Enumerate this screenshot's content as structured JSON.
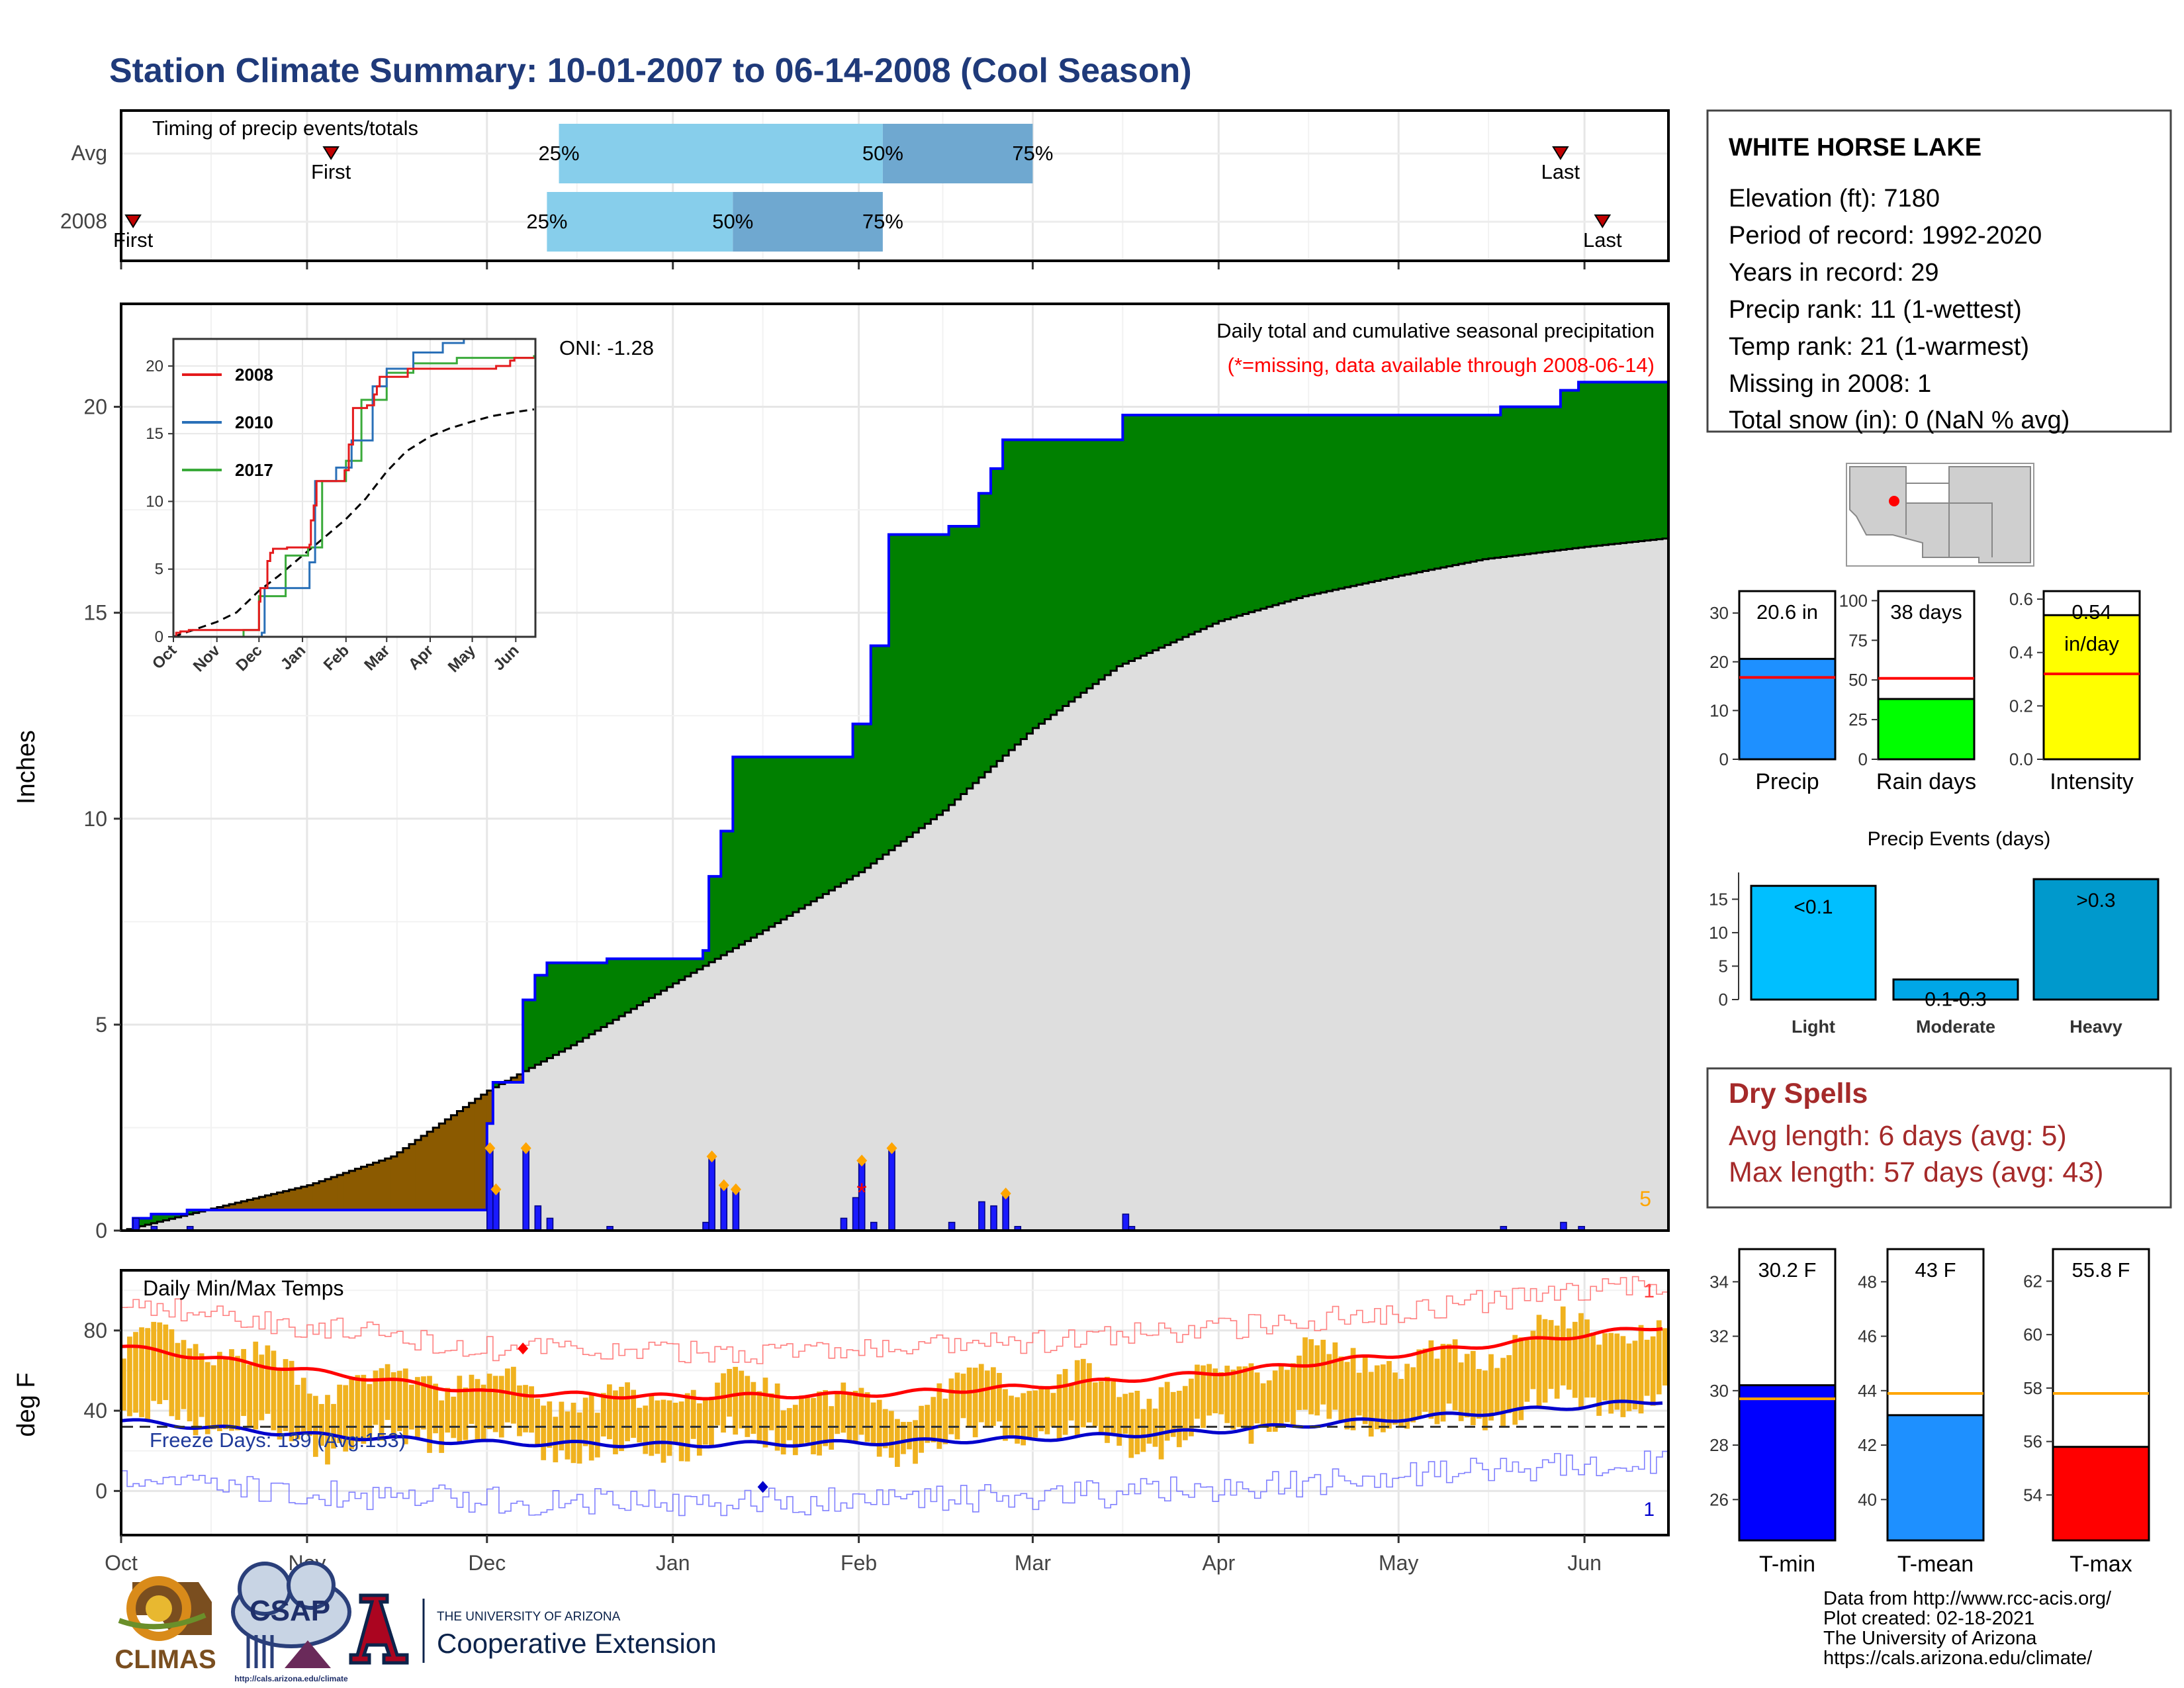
{
  "title": "Station Climate Summary: 10-01-2007 to 06-14-2008 (Cool Season)",
  "colors": {
    "title": "#1f3a7a",
    "cumulative_precip": "#008000",
    "deficit_precip": "#8b5a00",
    "normal_area": "#dedede",
    "precip_line": "#0000ff",
    "daily_bar": "#1a1aff",
    "temp_bar": "#f0b21f",
    "tmax_avg": "#ff0000",
    "tmin_avg": "#0000cc",
    "dry_spells": "#a52a2a",
    "light": "#00bfff",
    "moderate": "#00a6e6",
    "heavy": "#0099cc",
    "rain_days": "#00ff00",
    "intensity": "#ffff00",
    "precip_gauge": "#1e90ff",
    "tmin_gauge": "#0000ff",
    "tmean_gauge": "#1e90ff",
    "tmax_gauge": "#ff0000"
  },
  "timing": {
    "label": "Timing of precip events/totals",
    "rows": [
      {
        "label": "Avg",
        "first": "First",
        "last": "Last",
        "first_date": "2007-11-05",
        "last_date": "2008-05-28",
        "q25_date": "2007-12-13",
        "q50_date": "2008-02-05",
        "q75_date": "2008-03-01",
        "q25": "25%",
        "q50": "50%",
        "q75": "75%"
      },
      {
        "label": "2008",
        "first": "First",
        "last": "Last",
        "first_date": "2007-10-03",
        "last_date": "2008-06-04",
        "q25_date": "2007-12-11",
        "q50_date": "2008-01-11",
        "q75_date": "2008-02-05",
        "q25": "25%",
        "q50": "50%",
        "q75": "75%"
      }
    ]
  },
  "precip_panel": {
    "ylabel": "Inches",
    "oni": "ONI: -1.28",
    "caption": "Daily total and cumulative seasonal precipitation",
    "missing_note": "(*=missing, data available through 2008-06-14)",
    "count_label": "5",
    "yticks": [
      "0",
      "5",
      "10",
      "15",
      "20"
    ]
  },
  "inset": {
    "legend": [
      "2008",
      "2010",
      "2017"
    ],
    "yticks": [
      "0",
      "5",
      "10",
      "15",
      "20"
    ],
    "xticks": [
      "Oct",
      "Nov",
      "Dec",
      "Jan",
      "Feb",
      "Mar",
      "Apr",
      "May",
      "Jun"
    ]
  },
  "temp_panel": {
    "ylabel": "deg F",
    "label": "Daily Min/Max Temps",
    "freeze": "Freeze Days: 139 (Avg:153)",
    "top_count": "1",
    "bottom_count": "1",
    "yticks": [
      "0",
      "40",
      "80"
    ]
  },
  "months": [
    "Oct",
    "Nov",
    "Dec",
    "Jan",
    "Feb",
    "Mar",
    "Apr",
    "May",
    "Jun"
  ],
  "station": {
    "name": "WHITE HORSE LAKE",
    "lines": [
      "Elevation (ft): 7180",
      "Period of record: 1992-2020",
      "Years in record: 29",
      "Precip rank: 11 (1-wettest)",
      "Temp rank: 21 (1-warmest)",
      "Missing in 2008: 1",
      "Total snow (in): 0 (NaN % avg)"
    ]
  },
  "gauges_precip": [
    {
      "label": "Precip",
      "value_text": "20.6 in",
      "value": 20.6,
      "avg": 16.8,
      "max": 34.5,
      "ticks": [
        "0",
        "10",
        "20",
        "30"
      ],
      "tick_values": [
        0,
        10,
        20,
        30
      ]
    },
    {
      "label": "Rain days",
      "value_text": "38 days",
      "value": 38,
      "avg": 51,
      "max": 106,
      "ticks": [
        "0",
        "25",
        "50",
        "75",
        "100"
      ],
      "tick_values": [
        0,
        25,
        50,
        75,
        100
      ]
    },
    {
      "label": "Intensity",
      "value_text": "0.54",
      "value_text2": "in/day",
      "value": 0.54,
      "avg": 0.32,
      "max": 0.63,
      "ticks": [
        "0.0",
        "0.2",
        "0.4",
        "0.6"
      ],
      "tick_values": [
        0,
        0.2,
        0.4,
        0.6
      ]
    }
  ],
  "events": {
    "title": "Precip Events (days)",
    "categories": [
      "Light",
      "Moderate",
      "Heavy"
    ],
    "bar_labels": [
      "<0.1",
      "0.1-0.3",
      ">0.3"
    ],
    "values": [
      17,
      3,
      18
    ],
    "yticks": [
      "0",
      "5",
      "10",
      "15"
    ],
    "ymax": 19
  },
  "dry_spells": {
    "title": "Dry Spells",
    "lines": [
      "Avg length: 6 days (avg: 5)",
      "Max length: 57 days (avg: 43)"
    ]
  },
  "gauges_temp": [
    {
      "label": "T-min",
      "value_text": "30.2 F",
      "value": 30.2,
      "avg": 29.7,
      "min": 24.5,
      "max": 35.2,
      "ticks": [
        "26",
        "28",
        "30",
        "32",
        "34"
      ],
      "tick_values": [
        26,
        28,
        30,
        32,
        34
      ]
    },
    {
      "label": "T-mean",
      "value_text": "43 F",
      "value": 43.1,
      "avg": 43.9,
      "min": 38.5,
      "max": 49.2,
      "ticks": [
        "40",
        "42",
        "44",
        "46",
        "48"
      ],
      "tick_values": [
        40,
        42,
        44,
        46,
        48
      ]
    },
    {
      "label": "T-max",
      "value_text": "55.8 F",
      "value": 55.8,
      "avg": 57.8,
      "min": 52.3,
      "max": 63.2,
      "ticks": [
        "54",
        "56",
        "58",
        "60",
        "62"
      ],
      "tick_values": [
        54,
        56,
        58,
        60,
        62
      ]
    }
  ],
  "footer": {
    "lines": [
      "Data from http://www.rcc-acis.org/",
      "Plot created: 02-18-2021",
      "The University of Arizona",
      "https://cals.arizona.edu/climate/"
    ],
    "logo1": "CLIMAS",
    "logo2": "CSAP",
    "logo2_url": "http://cals.arizona.edu/climate",
    "ua_small": "THE UNIVERSITY OF ARIZONA",
    "ua_big": "Cooperative Extension"
  },
  "chart_data": [
    {
      "type": "area",
      "title": "Daily total and cumulative seasonal precipitation",
      "ylabel": "Inches",
      "ylim": [
        0,
        22.5
      ],
      "x_range": [
        "2007-10-01",
        "2008-06-14"
      ],
      "cumulative_2008": [
        [
          "2007-10-01",
          0.0
        ],
        [
          "2007-10-03",
          0.3
        ],
        [
          "2007-10-06",
          0.4
        ],
        [
          "2007-10-12",
          0.5
        ],
        [
          "2007-11-30",
          0.5
        ],
        [
          "2007-12-01",
          2.6
        ],
        [
          "2007-12-02",
          3.6
        ],
        [
          "2007-12-06",
          3.6
        ],
        [
          "2007-12-07",
          5.6
        ],
        [
          "2007-12-09",
          6.2
        ],
        [
          "2007-12-11",
          6.5
        ],
        [
          "2007-12-18",
          6.5
        ],
        [
          "2007-12-21",
          6.6
        ],
        [
          "2007-12-31",
          6.6
        ],
        [
          "2008-01-06",
          6.8
        ],
        [
          "2008-01-07",
          8.6
        ],
        [
          "2008-01-09",
          9.7
        ],
        [
          "2008-01-11",
          11.5
        ],
        [
          "2008-01-29",
          11.5
        ],
        [
          "2008-01-31",
          12.3
        ],
        [
          "2008-02-03",
          14.2
        ],
        [
          "2008-02-06",
          16.9
        ],
        [
          "2008-02-14",
          16.9
        ],
        [
          "2008-02-16",
          17.1
        ],
        [
          "2008-02-21",
          17.9
        ],
        [
          "2008-02-23",
          18.5
        ],
        [
          "2008-02-25",
          19.2
        ],
        [
          "2008-03-14",
          19.2
        ],
        [
          "2008-03-16",
          19.8
        ],
        [
          "2008-05-18",
          20.0
        ],
        [
          "2008-05-28",
          20.4
        ],
        [
          "2008-05-31",
          20.6
        ],
        [
          "2008-06-14",
          20.6
        ]
      ],
      "normal_cumulative": [
        [
          "2007-10-01",
          0.0
        ],
        [
          "2007-10-15",
          0.5
        ],
        [
          "2007-11-01",
          1.1
        ],
        [
          "2007-11-15",
          1.8
        ],
        [
          "2007-12-01",
          3.4
        ],
        [
          "2007-12-15",
          4.5
        ],
        [
          "2008-01-01",
          6.0
        ],
        [
          "2008-01-15",
          7.2
        ],
        [
          "2008-02-01",
          8.7
        ],
        [
          "2008-02-15",
          10.2
        ],
        [
          "2008-03-01",
          12.2
        ],
        [
          "2008-03-15",
          13.7
        ],
        [
          "2008-04-01",
          14.8
        ],
        [
          "2008-04-15",
          15.4
        ],
        [
          "2008-05-01",
          15.9
        ],
        [
          "2008-05-15",
          16.3
        ],
        [
          "2008-06-01",
          16.6
        ],
        [
          "2008-06-14",
          16.8
        ]
      ],
      "daily_precip": [
        [
          "2007-10-03",
          0.3
        ],
        [
          "2007-10-06",
          0.1
        ],
        [
          "2007-10-12",
          0.1
        ],
        [
          "2007-12-01",
          2.0
        ],
        [
          "2007-12-02",
          1.0
        ],
        [
          "2007-12-07",
          2.0
        ],
        [
          "2007-12-09",
          0.6
        ],
        [
          "2007-12-11",
          0.3
        ],
        [
          "2007-12-21",
          0.1
        ],
        [
          "2008-01-06",
          0.2
        ],
        [
          "2008-01-07",
          1.8
        ],
        [
          "2008-01-09",
          1.1
        ],
        [
          "2008-01-11",
          1.0
        ],
        [
          "2008-01-29",
          0.3
        ],
        [
          "2008-01-31",
          0.8
        ],
        [
          "2008-02-01",
          1.7
        ],
        [
          "2008-02-03",
          0.2
        ],
        [
          "2008-02-06",
          2.0
        ],
        [
          "2008-02-16",
          0.2
        ],
        [
          "2008-02-21",
          0.7
        ],
        [
          "2008-02-23",
          0.6
        ],
        [
          "2008-02-25",
          0.9
        ],
        [
          "2008-02-27",
          0.1
        ],
        [
          "2008-03-16",
          0.4
        ],
        [
          "2008-03-17",
          0.1
        ],
        [
          "2008-05-18",
          0.1
        ],
        [
          "2008-05-28",
          0.2
        ],
        [
          "2008-05-31",
          0.1
        ]
      ],
      "missing_dates": [
        "2008-02-01"
      ]
    },
    {
      "type": "line",
      "title": "Daily Min/Max Temps",
      "ylabel": "deg F",
      "ylim": [
        -22,
        110
      ],
      "avg_tmax": [
        [
          "2007-10-01",
          72
        ],
        [
          "2007-11-01",
          60
        ],
        [
          "2007-12-01",
          49
        ],
        [
          "2008-01-01",
          47
        ],
        [
          "2008-02-01",
          48
        ],
        [
          "2008-03-01",
          52
        ],
        [
          "2008-04-01",
          59
        ],
        [
          "2008-05-01",
          68
        ],
        [
          "2008-06-14",
          82
        ]
      ],
      "avg_tmin": [
        [
          "2007-10-01",
          35
        ],
        [
          "2007-11-01",
          28
        ],
        [
          "2007-12-01",
          24
        ],
        [
          "2008-01-01",
          23
        ],
        [
          "2008-02-01",
          24
        ],
        [
          "2008-03-01",
          26
        ],
        [
          "2008-04-01",
          30
        ],
        [
          "2008-05-01",
          36
        ],
        [
          "2008-06-14",
          45
        ]
      ],
      "freeze_threshold": 32
    },
    {
      "type": "line",
      "title": "",
      "series_names": [
        "2008",
        "2010",
        "2017"
      ],
      "ylim": [
        0,
        22
      ]
    }
  ]
}
